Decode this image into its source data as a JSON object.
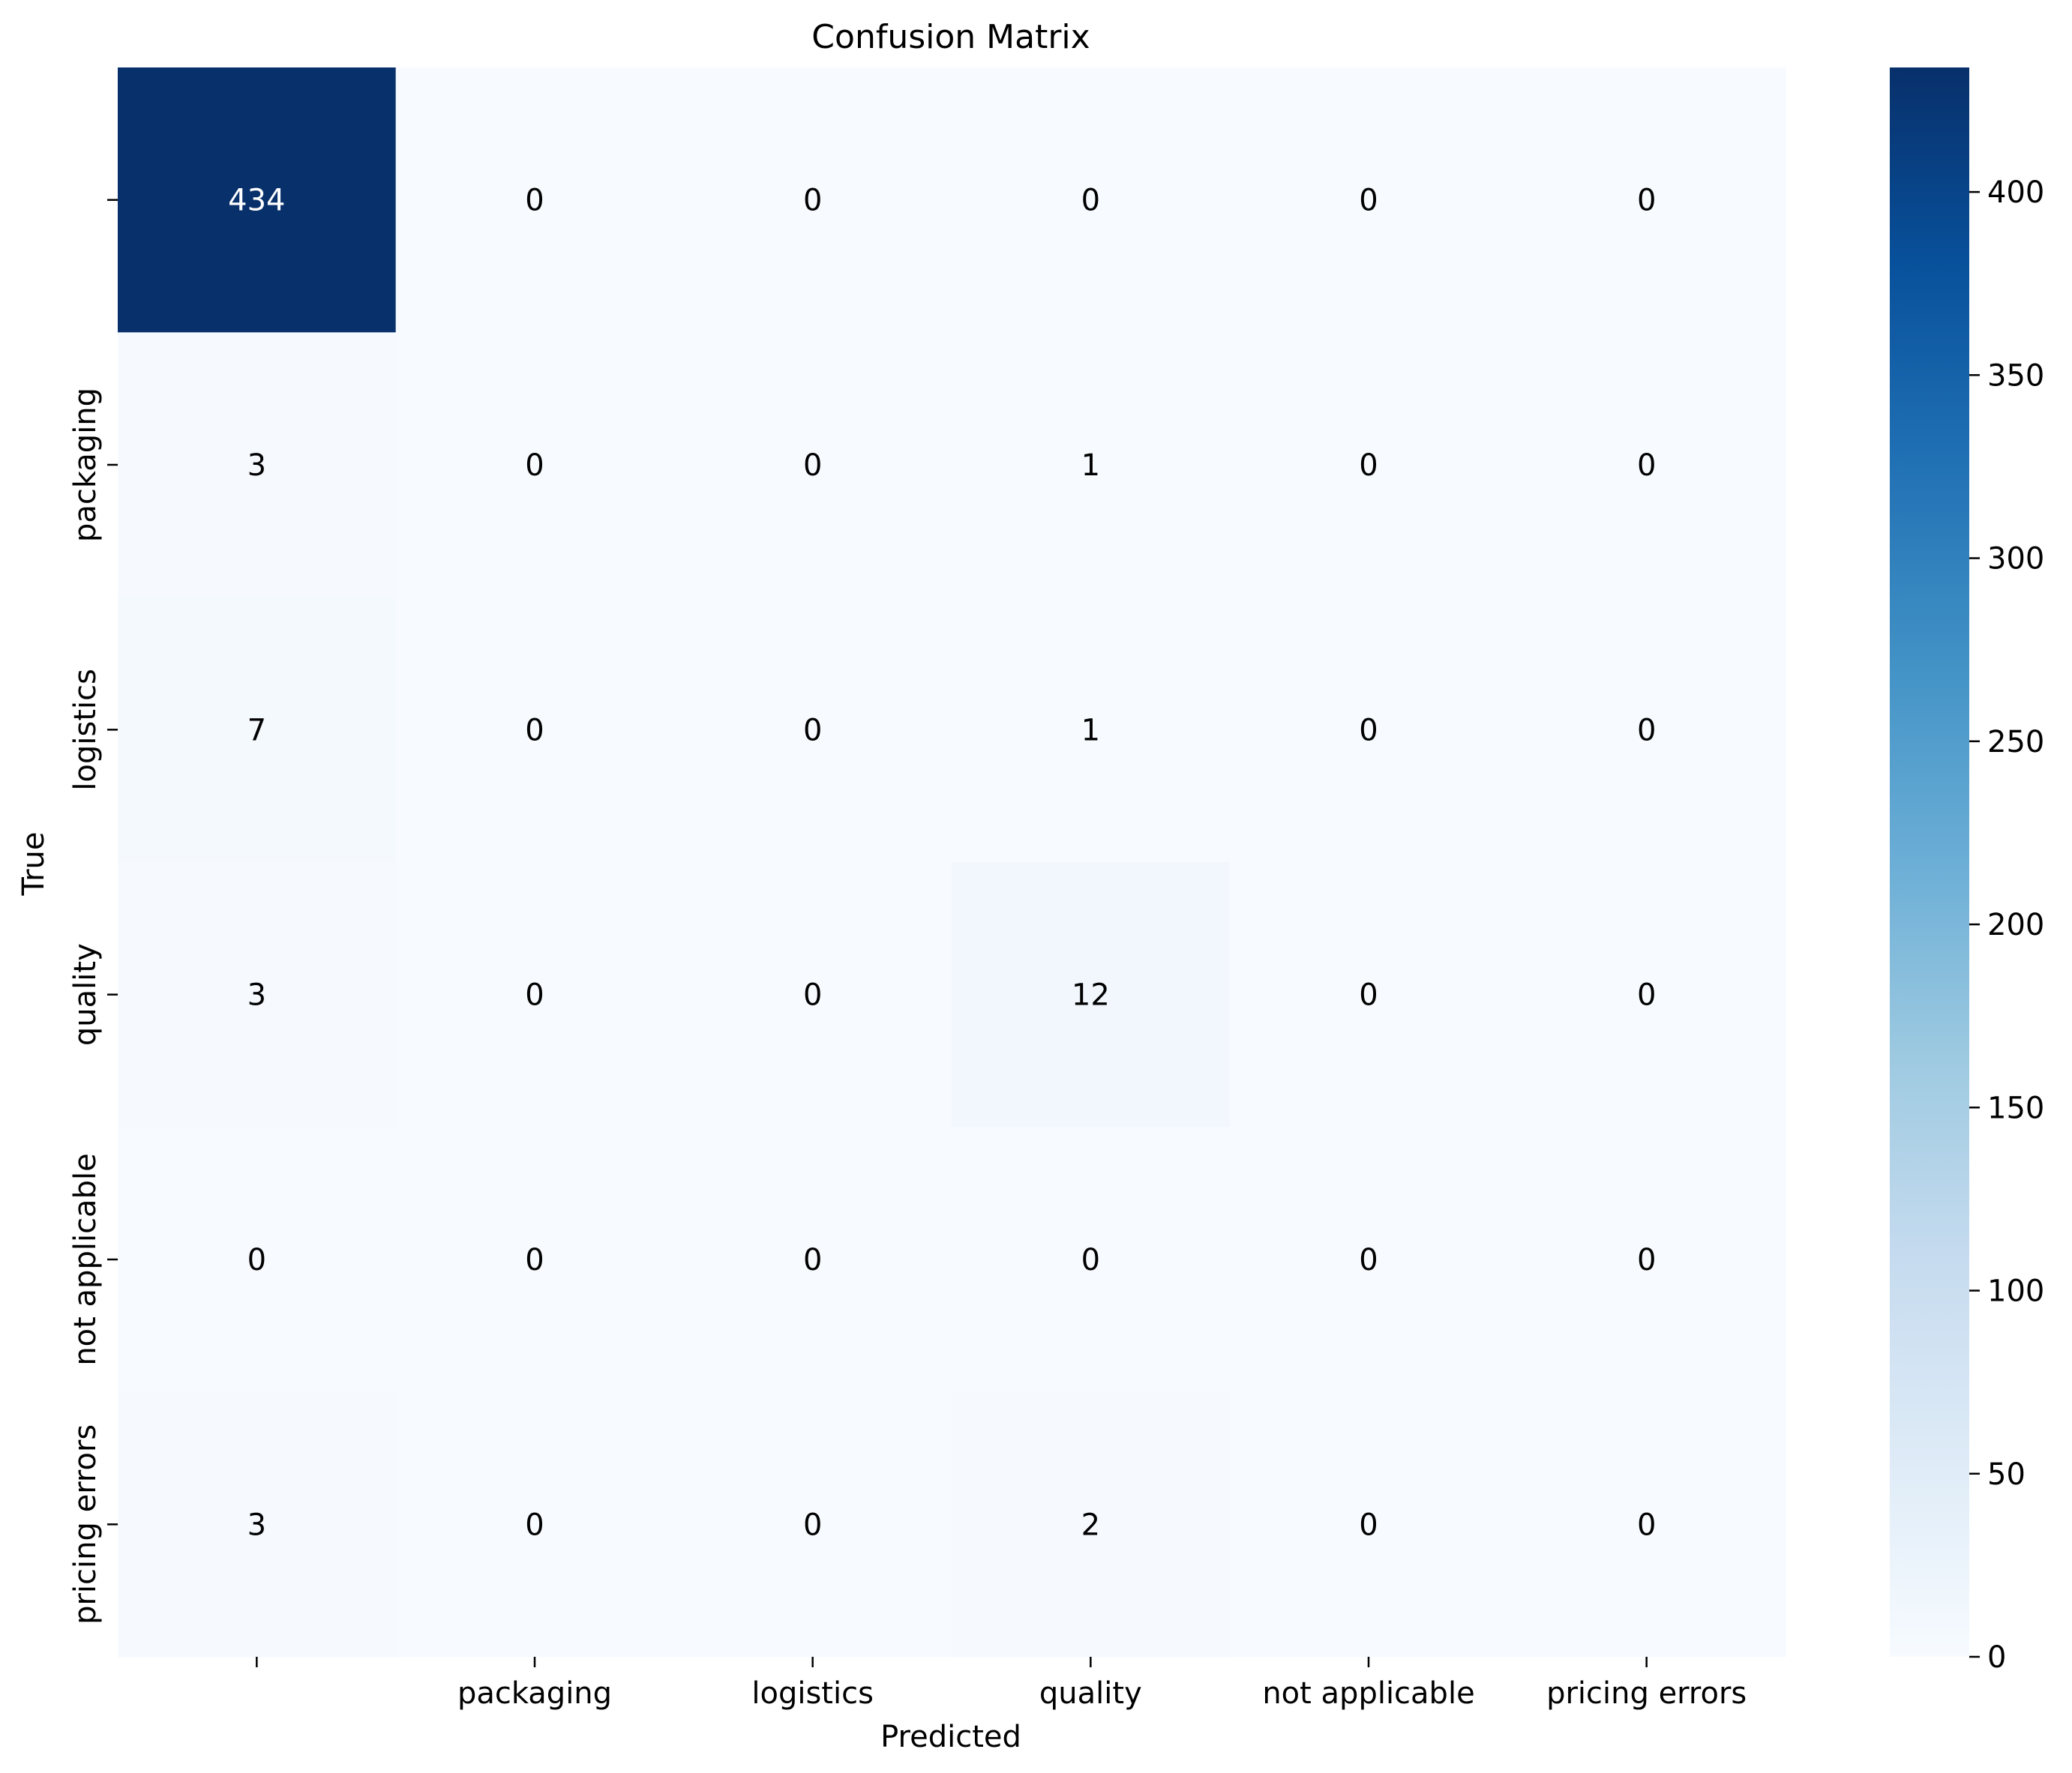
{
  "chart_data": {
    "type": "heatmap",
    "title": "Confusion Matrix",
    "xlabel": "Predicted",
    "ylabel": "True",
    "x_categories": [
      "",
      "packaging",
      "logistics",
      "quality",
      "not applicable",
      "pricing errors"
    ],
    "y_categories": [
      "",
      "packaging",
      "logistics",
      "quality",
      "not applicable",
      "pricing errors"
    ],
    "values": [
      [
        434,
        0,
        0,
        0,
        0,
        0
      ],
      [
        3,
        0,
        0,
        1,
        0,
        0
      ],
      [
        7,
        0,
        0,
        1,
        0,
        0
      ],
      [
        3,
        0,
        0,
        12,
        0,
        0
      ],
      [
        0,
        0,
        0,
        0,
        0,
        0
      ],
      [
        3,
        0,
        0,
        2,
        0,
        0
      ]
    ],
    "colorbar": {
      "range": [
        0,
        434
      ],
      "ticks": [
        0,
        50,
        100,
        150,
        200,
        250,
        300,
        350,
        400
      ],
      "colormap": "Blues",
      "colors": [
        "#f7fbff",
        "#deebf7",
        "#c6dbef",
        "#9ecae1",
        "#6baed6",
        "#4292c6",
        "#2171b5",
        "#08519c",
        "#08306b"
      ]
    },
    "grid": false
  }
}
